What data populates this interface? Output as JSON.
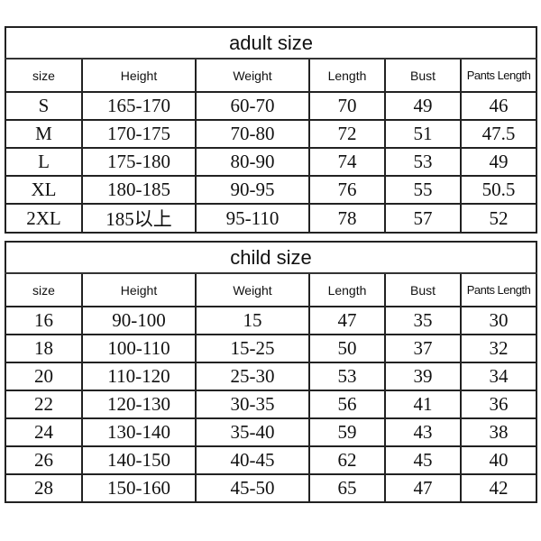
{
  "columns": [
    "size",
    "Height",
    "Weight",
    "Length",
    "Bust",
    "Pants Length"
  ],
  "adult": {
    "title": "adult size",
    "rows": [
      [
        "S",
        "165-170",
        "60-70",
        "70",
        "49",
        "46"
      ],
      [
        "M",
        "170-175",
        "70-80",
        "72",
        "51",
        "47.5"
      ],
      [
        "L",
        "175-180",
        "80-90",
        "74",
        "53",
        "49"
      ],
      [
        "XL",
        "180-185",
        "90-95",
        "76",
        "55",
        "50.5"
      ],
      [
        "2XL",
        "185以上",
        "95-110",
        "78",
        "57",
        "52"
      ]
    ]
  },
  "child": {
    "title": "child size",
    "rows": [
      [
        "16",
        "90-100",
        "15",
        "47",
        "35",
        "30"
      ],
      [
        "18",
        "100-110",
        "15-25",
        "50",
        "37",
        "32"
      ],
      [
        "20",
        "110-120",
        "25-30",
        "53",
        "39",
        "34"
      ],
      [
        "22",
        "120-130",
        "30-35",
        "56",
        "41",
        "36"
      ],
      [
        "24",
        "130-140",
        "35-40",
        "59",
        "43",
        "38"
      ],
      [
        "26",
        "140-150",
        "40-45",
        "62",
        "45",
        "40"
      ],
      [
        "28",
        "150-160",
        "45-50",
        "65",
        "47",
        "42"
      ]
    ]
  }
}
